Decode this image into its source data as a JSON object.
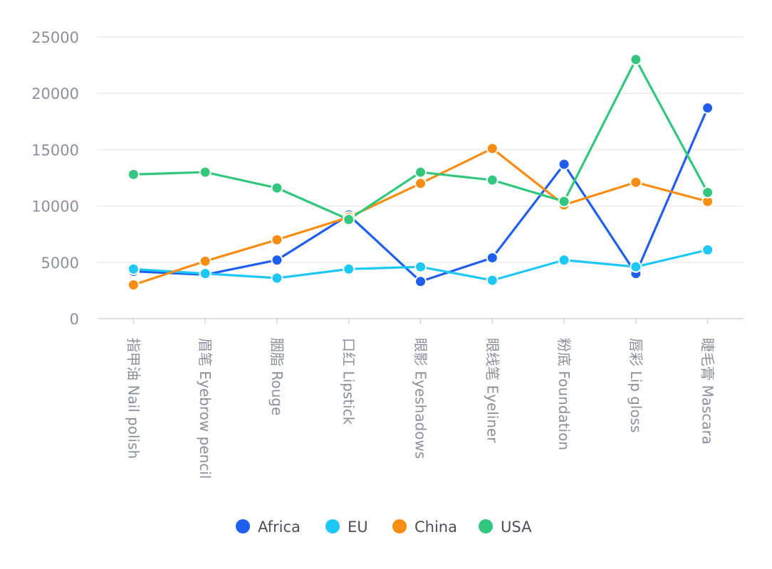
{
  "chart_data": {
    "type": "line",
    "title": "",
    "xlabel": "",
    "ylabel": "",
    "categories": [
      "指甲油 Nail polish",
      "眉笔 Eyebrow pencil",
      "胭脂 Rouge",
      "口红 Lipstick",
      "眼影 Eyeshadows",
      "眼线笔 Eyeliner",
      "粉底 Foundation",
      "唇彩 Lip gloss",
      "睫毛膏 Mascara"
    ],
    "ylim": [
      0,
      25000
    ],
    "yticks": [
      "0",
      "5000",
      "10000",
      "15000",
      "20000",
      "25000"
    ],
    "grid": true,
    "legend_position": "bottom",
    "series": [
      {
        "name": "Africa",
        "color": "#1f5ff0",
        "values": [
          4200,
          3900,
          5200,
          9200,
          3300,
          5400,
          13700,
          4000,
          18700
        ]
      },
      {
        "name": "EU",
        "color": "#1ec8f5",
        "values": [
          4400,
          4000,
          3600,
          4400,
          4600,
          3400,
          5200,
          4600,
          6100
        ]
      },
      {
        "name": "China",
        "color": "#f98c12",
        "values": [
          3000,
          5100,
          7000,
          9000,
          12000,
          15100,
          10100,
          12100,
          10400
        ]
      },
      {
        "name": "USA",
        "color": "#33c77d",
        "values": [
          12800,
          13000,
          11600,
          8800,
          13000,
          12300,
          10400,
          23000,
          11200
        ]
      }
    ]
  }
}
